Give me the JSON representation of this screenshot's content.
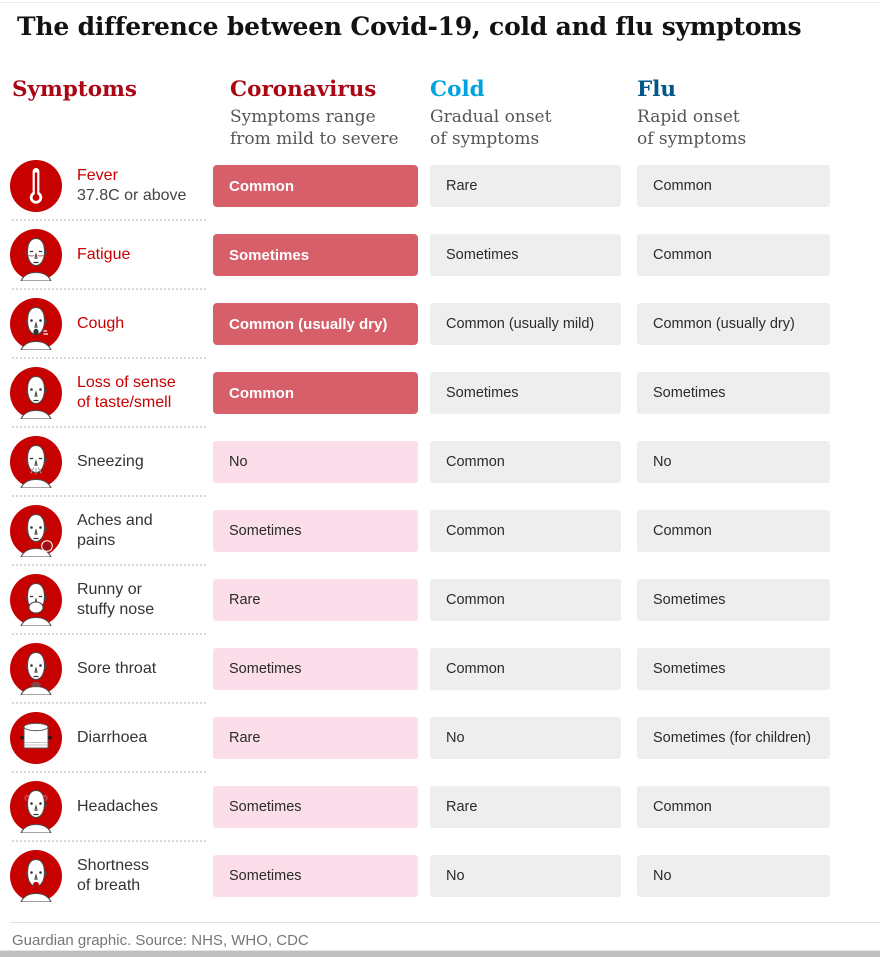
{
  "page": {
    "title": "The difference between Covid-19, cold and flu symptoms",
    "footer": "Guardian graphic. Source: NHS, WHO, CDC"
  },
  "colors": {
    "accent_red": "#c70000",
    "header_red": "#ab0613",
    "cold_blue": "#00a3e0",
    "flu_blue": "#005689",
    "cell_red": "#d65f69",
    "cell_pink": "#fbdee9",
    "cell_gray": "#eeeeee"
  },
  "columns": {
    "symptoms": {
      "label": "Symptoms"
    },
    "coronavirus": {
      "label": "Coronavirus",
      "subtitle": "Symptoms range\nfrom mild to severe"
    },
    "cold": {
      "label": "Cold",
      "subtitle": "Gradual onset\nof symptoms"
    },
    "flu": {
      "label": "Flu",
      "subtitle": "Rapid onset\nof symptoms"
    }
  },
  "rows": [
    {
      "icon": "thermometer-icon",
      "label": "Fever",
      "sublabel": "37.8C or above",
      "emphasis": true,
      "coronavirus": "Common",
      "coronavirus_emphasis": true,
      "cold": "Rare",
      "flu": "Common"
    },
    {
      "icon": "fatigue-face-icon",
      "label": "Fatigue",
      "emphasis": true,
      "coronavirus": "Sometimes",
      "coronavirus_emphasis": true,
      "cold": "Sometimes",
      "flu": "Common"
    },
    {
      "icon": "cough-face-icon",
      "label": "Cough",
      "emphasis": true,
      "coronavirus": "Common (usually dry)",
      "coronavirus_emphasis": true,
      "cold": "Common (usually mild)",
      "flu": "Common (usually dry)"
    },
    {
      "icon": "loss-of-taste-face-icon",
      "label": "Loss of sense\nof taste/smell",
      "emphasis": true,
      "coronavirus": "Common",
      "coronavirus_emphasis": true,
      "cold": "Sometimes",
      "flu": "Sometimes"
    },
    {
      "icon": "sneezing-face-icon",
      "label": "Sneezing",
      "emphasis": false,
      "coronavirus": "No",
      "coronavirus_emphasis": false,
      "cold": "Common",
      "flu": "No"
    },
    {
      "icon": "aches-face-icon",
      "label": "Aches and\npains",
      "emphasis": false,
      "coronavirus": "Sometimes",
      "coronavirus_emphasis": false,
      "cold": "Common",
      "flu": "Common"
    },
    {
      "icon": "runny-nose-face-icon",
      "label": "Runny or\nstuffy nose",
      "emphasis": false,
      "coronavirus": "Rare",
      "coronavirus_emphasis": false,
      "cold": "Common",
      "flu": "Sometimes"
    },
    {
      "icon": "sore-throat-face-icon",
      "label": "Sore throat",
      "emphasis": false,
      "coronavirus": "Sometimes",
      "coronavirus_emphasis": false,
      "cold": "Common",
      "flu": "Sometimes"
    },
    {
      "icon": "toilet-roll-icon",
      "label": "Diarrhoea",
      "emphasis": false,
      "coronavirus": "Rare",
      "coronavirus_emphasis": false,
      "cold": "No",
      "flu": "Sometimes (for children)"
    },
    {
      "icon": "headache-face-icon",
      "label": "Headaches",
      "emphasis": false,
      "coronavirus": "Sometimes",
      "coronavirus_emphasis": false,
      "cold": "Rare",
      "flu": "Common"
    },
    {
      "icon": "breath-face-icon",
      "label": "Shortness\nof breath",
      "emphasis": false,
      "coronavirus": "Sometimes",
      "coronavirus_emphasis": false,
      "cold": "No",
      "flu": "No"
    }
  ],
  "chart_data": {
    "type": "table",
    "title": "The difference between Covid-19, cold and flu symptoms",
    "columns": [
      "Symptoms",
      "Coronavirus",
      "Cold",
      "Flu"
    ],
    "column_notes": {
      "Coronavirus": "Symptoms range from mild to severe",
      "Cold": "Gradual onset of symptoms",
      "Flu": "Rapid onset of symptoms"
    },
    "rows": [
      {
        "symptom": "Fever (37.8C or above)",
        "coronavirus": "Common",
        "cold": "Rare",
        "flu": "Common"
      },
      {
        "symptom": "Fatigue",
        "coronavirus": "Sometimes",
        "cold": "Sometimes",
        "flu": "Common"
      },
      {
        "symptom": "Cough",
        "coronavirus": "Common (usually dry)",
        "cold": "Common (usually mild)",
        "flu": "Common (usually dry)"
      },
      {
        "symptom": "Loss of sense of taste/smell",
        "coronavirus": "Common",
        "cold": "Sometimes",
        "flu": "Sometimes"
      },
      {
        "symptom": "Sneezing",
        "coronavirus": "No",
        "cold": "Common",
        "flu": "No"
      },
      {
        "symptom": "Aches and pains",
        "coronavirus": "Sometimes",
        "cold": "Common",
        "flu": "Common"
      },
      {
        "symptom": "Runny or stuffy nose",
        "coronavirus": "Rare",
        "cold": "Common",
        "flu": "Sometimes"
      },
      {
        "symptom": "Sore throat",
        "coronavirus": "Sometimes",
        "cold": "Common",
        "flu": "Sometimes"
      },
      {
        "symptom": "Diarrhoea",
        "coronavirus": "Rare",
        "cold": "No",
        "flu": "Sometimes (for children)"
      },
      {
        "symptom": "Headaches",
        "coronavirus": "Sometimes",
        "cold": "Rare",
        "flu": "Common"
      },
      {
        "symptom": "Shortness of breath",
        "coronavirus": "Sometimes",
        "cold": "No",
        "flu": "No"
      }
    ],
    "source": "Guardian graphic. Source: NHS, WHO, CDC"
  }
}
